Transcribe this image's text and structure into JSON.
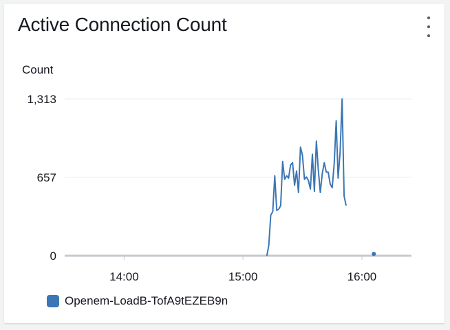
{
  "widget": {
    "title": "Active Connection Count",
    "menu_icon": "more-vertical-icon"
  },
  "chart_data": {
    "type": "line",
    "ylabel": "Count",
    "ylim": [
      0,
      1313
    ],
    "yticks": [
      {
        "value": 0,
        "label": "0"
      },
      {
        "value": 657,
        "label": "657"
      },
      {
        "value": 1313,
        "label": "1,313"
      }
    ],
    "xlim": [
      "13:30",
      "16:25"
    ],
    "xticks": [
      "14:00",
      "15:00",
      "16:00"
    ],
    "grid": true,
    "legend_position": "bottom-left",
    "series": [
      {
        "name": "Openem-LoadB-TofA9tEZEB9n",
        "color": "#3b76b5",
        "points": [
          [
            "15:12",
            0
          ],
          [
            "15:13",
            85
          ],
          [
            "15:14",
            340
          ],
          [
            "15:15",
            370
          ],
          [
            "15:16",
            670
          ],
          [
            "15:17",
            380
          ],
          [
            "15:18",
            390
          ],
          [
            "15:19",
            420
          ],
          [
            "15:20",
            790
          ],
          [
            "15:21",
            640
          ],
          [
            "15:22",
            670
          ],
          [
            "15:23",
            650
          ],
          [
            "15:24",
            760
          ],
          [
            "15:25",
            780
          ],
          [
            "15:26",
            590
          ],
          [
            "15:27",
            710
          ],
          [
            "15:28",
            530
          ],
          [
            "15:29",
            910
          ],
          [
            "15:30",
            840
          ],
          [
            "15:31",
            640
          ],
          [
            "15:32",
            660
          ],
          [
            "15:33",
            630
          ],
          [
            "15:34",
            560
          ],
          [
            "15:35",
            850
          ],
          [
            "15:36",
            540
          ],
          [
            "15:37",
            960
          ],
          [
            "15:38",
            720
          ],
          [
            "15:39",
            530
          ],
          [
            "15:40",
            690
          ],
          [
            "15:41",
            780
          ],
          [
            "15:42",
            700
          ],
          [
            "15:43",
            700
          ],
          [
            "15:44",
            600
          ],
          [
            "15:45",
            570
          ],
          [
            "15:46",
            770
          ],
          [
            "15:47",
            1130
          ],
          [
            "15:48",
            650
          ],
          [
            "15:49",
            870
          ],
          [
            "15:50",
            1313
          ],
          [
            "15:51",
            500
          ],
          [
            "15:52",
            420
          ]
        ],
        "isolated_points": [
          [
            "16:06",
            15
          ]
        ]
      }
    ]
  }
}
